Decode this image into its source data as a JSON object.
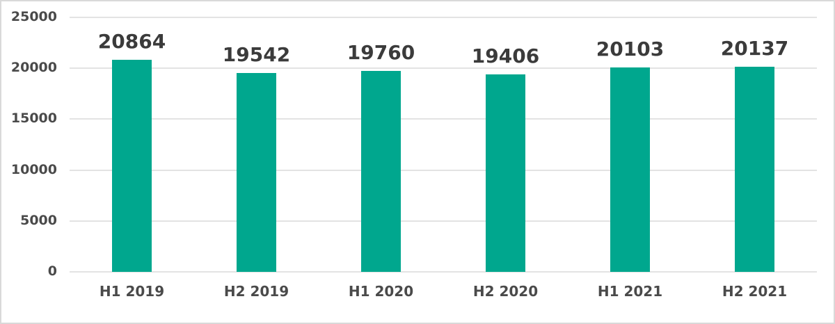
{
  "chart_data": {
    "type": "bar",
    "title": "",
    "xlabel": "",
    "ylabel": "",
    "categories": [
      "H1 2019",
      "H2 2019",
      "H1 2020",
      "H2 2020",
      "H1 2021",
      "H2 2021"
    ],
    "values": [
      20864,
      19542,
      19760,
      19406,
      20103,
      20137
    ],
    "ylim": [
      0,
      25000
    ],
    "yticks": [
      0,
      5000,
      10000,
      15000,
      20000,
      25000
    ],
    "grid": true,
    "legend": false,
    "data_labels": true,
    "bar_color": "#00A78E"
  },
  "colors": {
    "bar": "#00A78E",
    "gridline": "#e3e3e3",
    "axis_text": "#4a4a4a",
    "data_label_text": "#3b3b3b",
    "background": "#ffffff",
    "border": "#d9d9d9"
  }
}
